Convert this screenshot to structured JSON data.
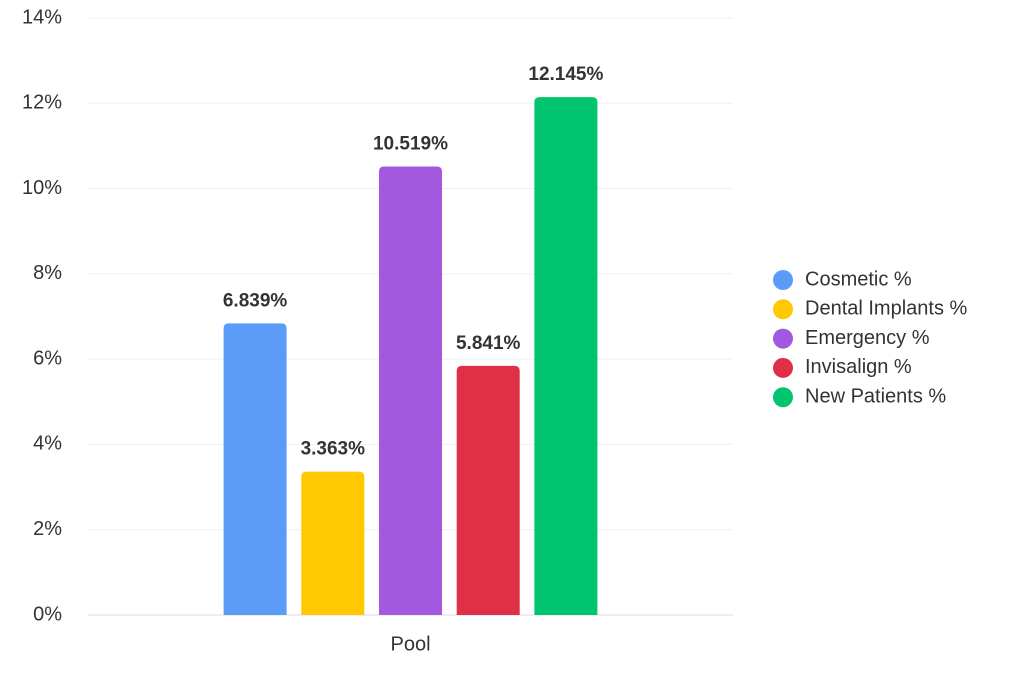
{
  "chart_data": {
    "type": "bar",
    "categories": [
      "Pool"
    ],
    "series": [
      {
        "name": "Cosmetic %",
        "color": "#5b9cf8",
        "values": [
          6.839
        ],
        "value_labels": [
          "6.839%"
        ]
      },
      {
        "name": "Dental Implants %",
        "color": "#ffc800",
        "values": [
          3.363
        ],
        "value_labels": [
          "3.363%"
        ]
      },
      {
        "name": "Emergency %",
        "color": "#a259e0",
        "values": [
          10.519
        ],
        "value_labels": [
          "10.519%"
        ]
      },
      {
        "name": "Invisalign %",
        "color": "#e03048",
        "values": [
          5.841
        ],
        "value_labels": [
          "5.841%"
        ]
      },
      {
        "name": "New Patients %",
        "color": "#00c46e",
        "values": [
          12.145
        ],
        "value_labels": [
          "12.145%"
        ]
      }
    ],
    "ylim": [
      0,
      14
    ],
    "yticks": [
      {
        "value": 0,
        "label": "0%"
      },
      {
        "value": 2,
        "label": "2%"
      },
      {
        "value": 4,
        "label": "4%"
      },
      {
        "value": 6,
        "label": "6%"
      },
      {
        "value": 8,
        "label": "8%"
      },
      {
        "value": 10,
        "label": "10%"
      },
      {
        "value": 12,
        "label": "12%"
      },
      {
        "value": 14,
        "label": "14%"
      }
    ],
    "grid": true,
    "legend": "right"
  }
}
